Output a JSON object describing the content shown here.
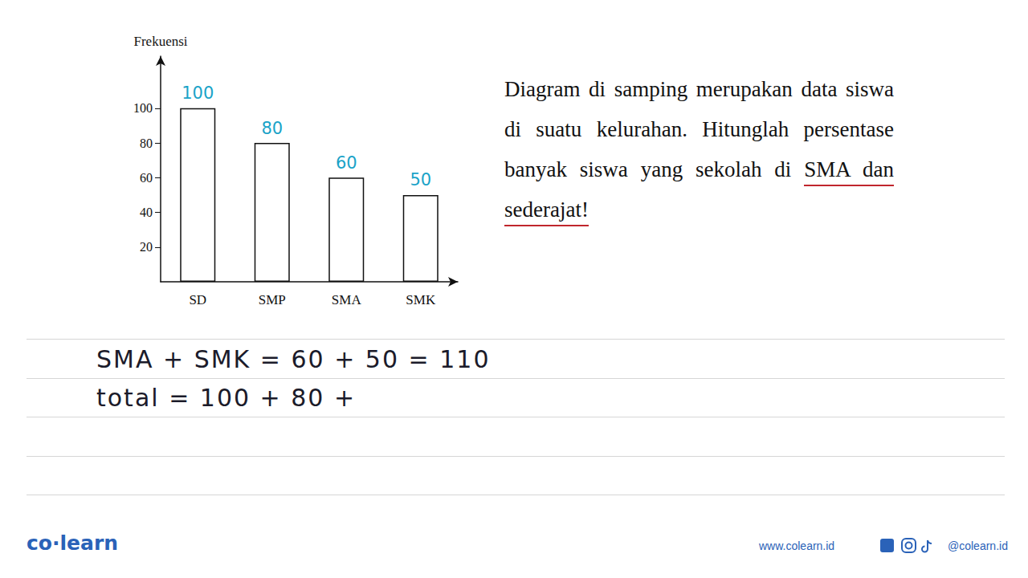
{
  "chart_data": {
    "type": "bar",
    "y_label": "Frekuensi",
    "categories": [
      "SD",
      "SMP",
      "SMA",
      "SMK"
    ],
    "values": [
      100,
      80,
      60,
      50
    ],
    "color": "#ffffff",
    "ylim": [
      0,
      130
    ],
    "yticks": [
      20,
      40,
      60,
      80,
      100
    ],
    "grid": false,
    "data_labels": true
  },
  "question": {
    "text": "Diagram di samping merupakan data siswa di suatu kelurahan. Hitunglah persentase banyak siswa yang sekolah di",
    "underlined": "SMA dan sederajat!"
  },
  "notes": [
    "SMA + SMK = 60 + 50 = 110",
    "total = 100 + 80 +"
  ],
  "footer": {
    "logo": "co·learn",
    "website": "www.colearn.id",
    "social": "@colearn.id"
  }
}
